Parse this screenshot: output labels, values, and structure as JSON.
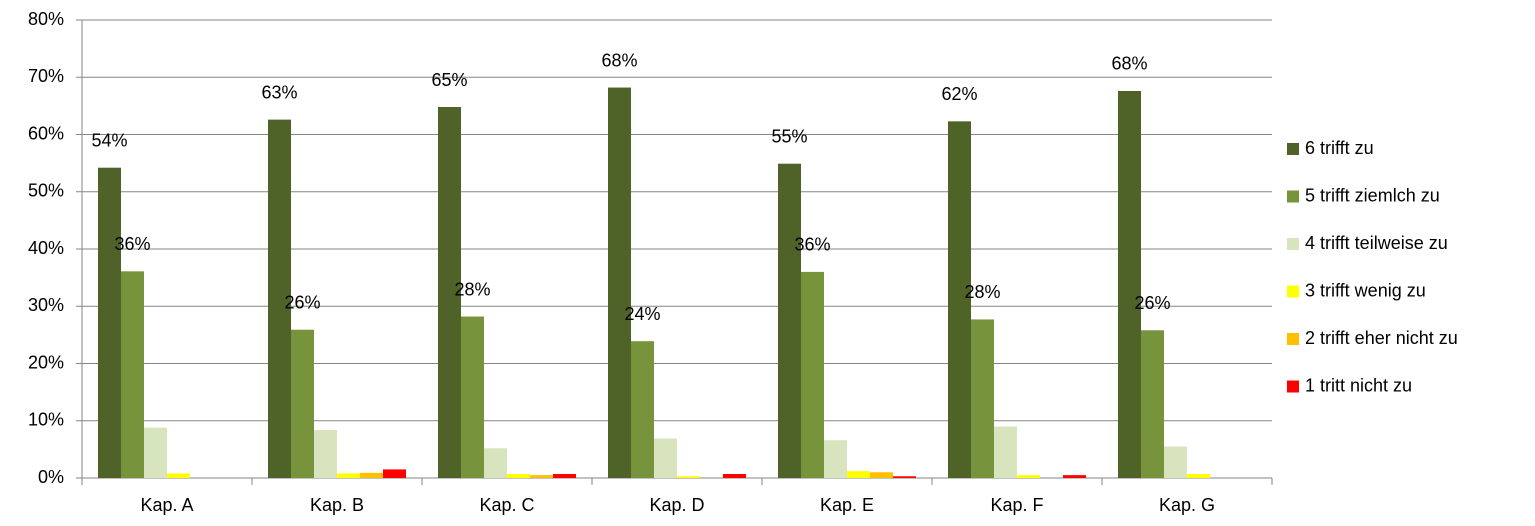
{
  "chart_data": {
    "type": "bar",
    "categories": [
      "Kap. A",
      "Kap. B",
      "Kap. C",
      "Kap. D",
      "Kap. E",
      "Kap. F",
      "Kap. G"
    ],
    "series": [
      {
        "name": "6 trifft zu",
        "color": "#4f6228",
        "values": [
          54.2,
          62.6,
          64.8,
          68.2,
          54.9,
          62.3,
          67.6
        ],
        "value_labels": [
          "54%",
          "63%",
          "65%",
          "68%",
          "55%",
          "62%",
          "68%"
        ]
      },
      {
        "name": "5 trifft ziemlch zu",
        "color": "#77933c",
        "values": [
          36.1,
          25.9,
          28.2,
          23.9,
          36.0,
          27.7,
          25.8
        ],
        "value_labels": [
          "36%",
          "26%",
          "28%",
          "24%",
          "36%",
          "28%",
          "26%"
        ]
      },
      {
        "name": "4 trifft teilweise zu",
        "color": "#d7e4bd",
        "values": [
          8.8,
          8.4,
          5.2,
          6.9,
          6.6,
          9.0,
          5.5
        ]
      },
      {
        "name": "3 trifft wenig zu",
        "color": "#ffff00",
        "values": [
          0.8,
          0.8,
          0.7,
          0.3,
          1.2,
          0.5,
          0.7
        ]
      },
      {
        "name": "2 trifft eher nicht zu",
        "color": "#ffc000",
        "values": [
          0,
          0.9,
          0.5,
          0,
          1.0,
          0,
          0
        ]
      },
      {
        "name": "1 tritt nicht zu",
        "color": "#ff0000",
        "values": [
          0,
          1.5,
          0.7,
          0.7,
          0.3,
          0.5,
          0
        ]
      }
    ],
    "ylim": [
      0,
      80
    ],
    "yticks": [
      {
        "value": 0,
        "label": "0%"
      },
      {
        "value": 10,
        "label": "10%"
      },
      {
        "value": 20,
        "label": "20%"
      },
      {
        "value": 30,
        "label": "30%"
      },
      {
        "value": 40,
        "label": "40%"
      },
      {
        "value": 50,
        "label": "50%"
      },
      {
        "value": 60,
        "label": "60%"
      },
      {
        "value": 70,
        "label": "70%"
      },
      {
        "value": 80,
        "label": "80%"
      }
    ],
    "grid": true,
    "legend": "right"
  }
}
